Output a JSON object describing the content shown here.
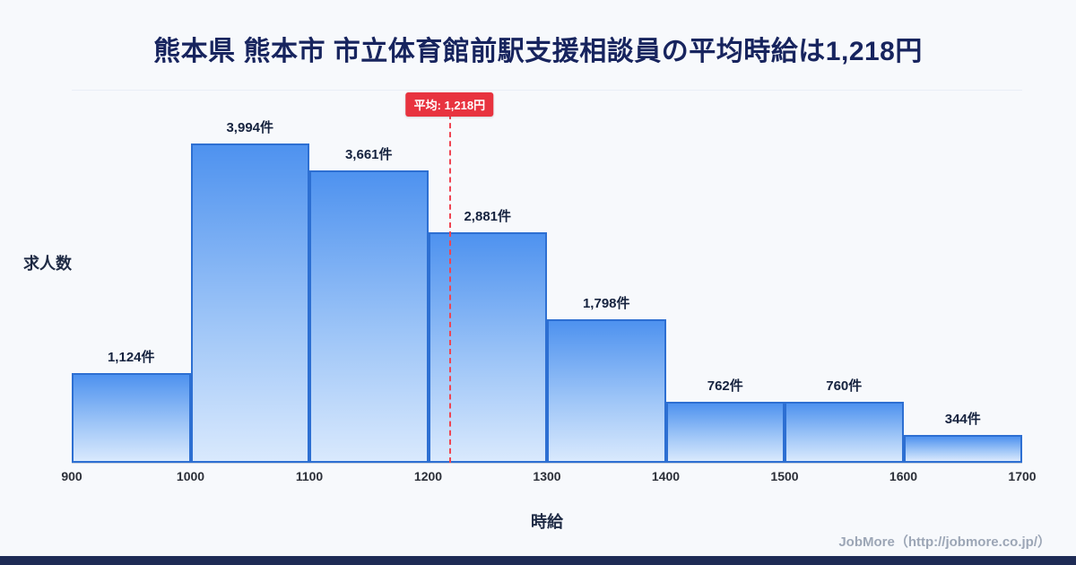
{
  "page": {
    "title": "熊本県 熊本市 市立体育館前駅支援相談員の平均時給は1,218円",
    "footer_credit": "JobMore（http://jobmore.co.jp/）"
  },
  "chart_data": {
    "type": "bar",
    "title": "熊本県 熊本市 市立体育館前駅支援相談員の平均時給は1,218円",
    "xlabel": "時給",
    "ylabel": "求人数",
    "bin_edges": [
      900,
      1000,
      1100,
      1200,
      1300,
      1400,
      1500,
      1600,
      1700
    ],
    "categories": [
      "900-1000",
      "1000-1100",
      "1100-1200",
      "1200-1300",
      "1300-1400",
      "1400-1500",
      "1500-1600",
      "1600-1700"
    ],
    "values": [
      1124,
      3994,
      3661,
      2881,
      1798,
      762,
      760,
      344
    ],
    "value_labels": [
      "1,124件",
      "3,994件",
      "3,661件",
      "2,881件",
      "1,798件",
      "762件",
      "760件",
      "344件"
    ],
    "x_ticks": [
      "900",
      "1000",
      "1100",
      "1200",
      "1300",
      "1400",
      "1500",
      "1600",
      "1700"
    ],
    "ylim": [
      0,
      4660
    ],
    "grid": false,
    "legend": false,
    "average": {
      "value": 1218,
      "label": "平均: 1,218円"
    },
    "colors": {
      "bar_top": "#4e92ef",
      "bar_bottom": "#d9e9fd",
      "bar_border": "#2d6fd2",
      "average_line": "#ef4452",
      "badge_bg": "#e8333f",
      "title_text": "#17245e",
      "accent_bar": "#1e2b55"
    }
  }
}
